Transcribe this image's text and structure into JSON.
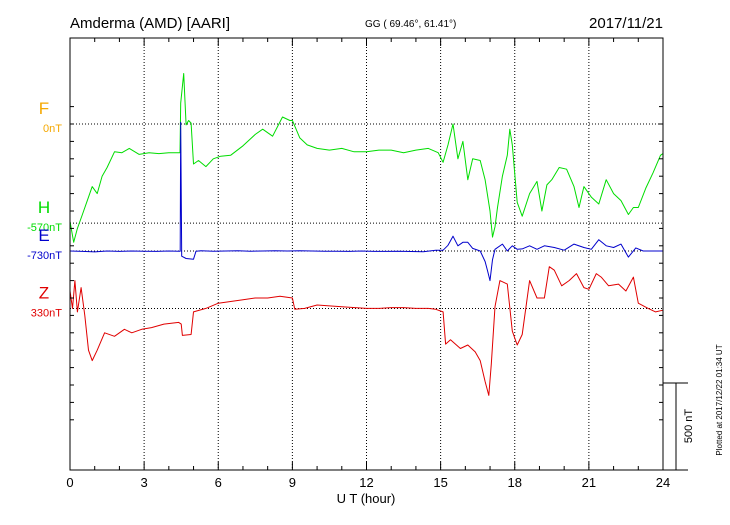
{
  "header": {
    "station": "Amderma (AMD)  [AARI]",
    "coords": "GG ( 69.46°,  61.41°)",
    "date": "2017/11/21"
  },
  "side_note": "Plotted at 2017/12/22 01:34 UT",
  "colors": {
    "F": "#f5a800",
    "H": "#00dd00",
    "E": "#0000cc",
    "Z": "#e00000",
    "grid": "#000000",
    "frame": "#000000"
  },
  "chart_data": {
    "type": "line",
    "title": "Amderma (AMD)  [AARI]",
    "xlabel": "U T (hour)",
    "xlim": [
      0,
      24
    ],
    "xticks": [
      0,
      3,
      6,
      9,
      12,
      15,
      18,
      21,
      24
    ],
    "scale_bar_label": "500 nT",
    "grid": true,
    "series": [
      {
        "key": "F",
        "name": "F",
        "offset_label": "0nT",
        "baseline_nT": 0,
        "points": []
      },
      {
        "key": "H",
        "name": "H",
        "offset_label": "-570nT",
        "baseline_nT": -570,
        "points": [
          [
            0.0,
            -560
          ],
          [
            0.15,
            -680
          ],
          [
            0.3,
            -600
          ],
          [
            0.5,
            -520
          ],
          [
            0.7,
            -440
          ],
          [
            0.9,
            -360
          ],
          [
            1.1,
            -400
          ],
          [
            1.3,
            -300
          ],
          [
            1.5,
            -250
          ],
          [
            1.8,
            -160
          ],
          [
            2.1,
            -165
          ],
          [
            2.4,
            -140
          ],
          [
            2.8,
            -175
          ],
          [
            3.2,
            -165
          ],
          [
            3.6,
            -170
          ],
          [
            4.0,
            -165
          ],
          [
            4.45,
            -165
          ],
          [
            4.48,
            120
          ],
          [
            4.6,
            290
          ],
          [
            4.7,
            -5
          ],
          [
            4.8,
            20
          ],
          [
            4.9,
            5
          ],
          [
            5.0,
            -230
          ],
          [
            5.2,
            -210
          ],
          [
            5.5,
            -245
          ],
          [
            5.8,
            -200
          ],
          [
            6.1,
            -185
          ],
          [
            6.5,
            -180
          ],
          [
            7.0,
            -125
          ],
          [
            7.5,
            -60
          ],
          [
            7.8,
            -30
          ],
          [
            8.2,
            -70
          ],
          [
            8.6,
            40
          ],
          [
            8.9,
            20
          ],
          [
            9.0,
            20
          ],
          [
            9.3,
            -80
          ],
          [
            9.6,
            -120
          ],
          [
            10.0,
            -140
          ],
          [
            10.5,
            -150
          ],
          [
            11.0,
            -140
          ],
          [
            11.5,
            -160
          ],
          [
            12.0,
            -160
          ],
          [
            12.5,
            -150
          ],
          [
            13.0,
            -150
          ],
          [
            13.5,
            -165
          ],
          [
            14.0,
            -150
          ],
          [
            14.5,
            -140
          ],
          [
            14.9,
            -165
          ],
          [
            15.1,
            -220
          ],
          [
            15.3,
            -120
          ],
          [
            15.5,
            0
          ],
          [
            15.7,
            -200
          ],
          [
            15.9,
            -100
          ],
          [
            16.1,
            -320
          ],
          [
            16.3,
            -200
          ],
          [
            16.6,
            -210
          ],
          [
            16.8,
            -320
          ],
          [
            17.0,
            -500
          ],
          [
            17.1,
            -650
          ],
          [
            17.2,
            -590
          ],
          [
            17.3,
            -480
          ],
          [
            17.5,
            -300
          ],
          [
            17.7,
            -180
          ],
          [
            17.8,
            -30
          ],
          [
            17.9,
            -120
          ],
          [
            18.1,
            -450
          ],
          [
            18.3,
            -530
          ],
          [
            18.6,
            -400
          ],
          [
            18.9,
            -330
          ],
          [
            19.1,
            -500
          ],
          [
            19.3,
            -350
          ],
          [
            19.5,
            -320
          ],
          [
            19.8,
            -250
          ],
          [
            20.1,
            -260
          ],
          [
            20.4,
            -360
          ],
          [
            20.6,
            -480
          ],
          [
            20.8,
            -360
          ],
          [
            21.1,
            -420
          ],
          [
            21.4,
            -460
          ],
          [
            21.7,
            -320
          ],
          [
            22.0,
            -400
          ],
          [
            22.3,
            -440
          ],
          [
            22.6,
            -520
          ],
          [
            22.8,
            -480
          ],
          [
            23.0,
            -480
          ],
          [
            23.3,
            -370
          ],
          [
            23.6,
            -280
          ],
          [
            23.9,
            -180
          ],
          [
            24.0,
            -170
          ]
        ]
      },
      {
        "key": "E",
        "name": "E",
        "offset_label": "-730nT",
        "baseline_nT": -730,
        "points": [
          [
            0.0,
            -730
          ],
          [
            0.5,
            -732
          ],
          [
            1.0,
            -735
          ],
          [
            1.5,
            -730
          ],
          [
            2.0,
            -732
          ],
          [
            2.5,
            -730
          ],
          [
            3.0,
            -731
          ],
          [
            3.5,
            -732
          ],
          [
            4.0,
            -730
          ],
          [
            4.4,
            -731
          ],
          [
            4.46,
            -731
          ],
          [
            4.48,
            10
          ],
          [
            4.52,
            -760
          ],
          [
            4.7,
            -773
          ],
          [
            5.0,
            -777
          ],
          [
            5.1,
            -731
          ],
          [
            5.3,
            -729
          ],
          [
            5.8,
            -731
          ],
          [
            6.3,
            -730
          ],
          [
            6.8,
            -728
          ],
          [
            7.3,
            -731
          ],
          [
            7.8,
            -730
          ],
          [
            8.3,
            -729
          ],
          [
            8.8,
            -730
          ],
          [
            9.3,
            -729
          ],
          [
            9.8,
            -730
          ],
          [
            10.3,
            -731
          ],
          [
            10.8,
            -731
          ],
          [
            11.3,
            -732
          ],
          [
            11.8,
            -730
          ],
          [
            12.3,
            -732
          ],
          [
            12.8,
            -732
          ],
          [
            13.3,
            -731
          ],
          [
            13.8,
            -733
          ],
          [
            14.3,
            -734
          ],
          [
            14.8,
            -726
          ],
          [
            15.1,
            -725
          ],
          [
            15.3,
            -697
          ],
          [
            15.5,
            -645
          ],
          [
            15.7,
            -700
          ],
          [
            15.9,
            -680
          ],
          [
            16.1,
            -680
          ],
          [
            16.3,
            -715
          ],
          [
            16.6,
            -730
          ],
          [
            16.8,
            -790
          ],
          [
            16.9,
            -845
          ],
          [
            17.0,
            -900
          ],
          [
            17.1,
            -780
          ],
          [
            17.2,
            -720
          ],
          [
            17.5,
            -690
          ],
          [
            17.7,
            -730
          ],
          [
            17.9,
            -700
          ],
          [
            18.1,
            -720
          ],
          [
            18.3,
            -718
          ],
          [
            18.6,
            -700
          ],
          [
            18.9,
            -720
          ],
          [
            19.2,
            -700
          ],
          [
            19.6,
            -710
          ],
          [
            20.0,
            -725
          ],
          [
            20.4,
            -690
          ],
          [
            20.8,
            -710
          ],
          [
            21.1,
            -720
          ],
          [
            21.4,
            -665
          ],
          [
            21.7,
            -700
          ],
          [
            22.0,
            -710
          ],
          [
            22.3,
            -690
          ],
          [
            22.6,
            -765
          ],
          [
            22.9,
            -712
          ],
          [
            23.2,
            -730
          ],
          [
            23.6,
            -730
          ],
          [
            24.0,
            -730
          ]
        ]
      },
      {
        "key": "Z",
        "name": "Z",
        "offset_label": "330nT",
        "baseline_nT": -1060,
        "points": [
          [
            0.0,
            -960
          ],
          [
            0.1,
            -1060
          ],
          [
            0.2,
            -900
          ],
          [
            0.3,
            -1080
          ],
          [
            0.45,
            -940
          ],
          [
            0.6,
            -1100
          ],
          [
            0.75,
            -1300
          ],
          [
            0.9,
            -1360
          ],
          [
            1.1,
            -1300
          ],
          [
            1.4,
            -1200
          ],
          [
            1.8,
            -1220
          ],
          [
            2.2,
            -1180
          ],
          [
            2.5,
            -1200
          ],
          [
            2.9,
            -1180
          ],
          [
            3.3,
            -1170
          ],
          [
            3.8,
            -1150
          ],
          [
            4.4,
            -1140
          ],
          [
            4.5,
            -1150
          ],
          [
            4.55,
            -1215
          ],
          [
            4.9,
            -1210
          ],
          [
            5.0,
            -1080
          ],
          [
            5.5,
            -1060
          ],
          [
            6.0,
            -1030
          ],
          [
            6.5,
            -1020
          ],
          [
            7.0,
            -1010
          ],
          [
            7.5,
            -1000
          ],
          [
            8.0,
            -1000
          ],
          [
            8.5,
            -990
          ],
          [
            9.0,
            -1000
          ],
          [
            9.1,
            -1065
          ],
          [
            9.5,
            -1060
          ],
          [
            10.0,
            -1040
          ],
          [
            11.0,
            -1050
          ],
          [
            12.0,
            -1060
          ],
          [
            12.5,
            -1060
          ],
          [
            13.0,
            -1055
          ],
          [
            13.5,
            -1055
          ],
          [
            14.0,
            -1060
          ],
          [
            14.5,
            -1060
          ],
          [
            14.8,
            -1065
          ],
          [
            15.1,
            -1080
          ],
          [
            15.2,
            -1265
          ],
          [
            15.4,
            -1240
          ],
          [
            15.8,
            -1290
          ],
          [
            16.1,
            -1270
          ],
          [
            16.4,
            -1310
          ],
          [
            16.6,
            -1360
          ],
          [
            16.8,
            -1480
          ],
          [
            16.95,
            -1560
          ],
          [
            17.05,
            -1380
          ],
          [
            17.2,
            -1050
          ],
          [
            17.4,
            -900
          ],
          [
            17.7,
            -920
          ],
          [
            17.9,
            -1190
          ],
          [
            18.1,
            -1270
          ],
          [
            18.3,
            -1210
          ],
          [
            18.6,
            -900
          ],
          [
            18.9,
            -1000
          ],
          [
            19.2,
            -1000
          ],
          [
            19.4,
            -820
          ],
          [
            19.6,
            -840
          ],
          [
            19.9,
            -930
          ],
          [
            20.2,
            -900
          ],
          [
            20.5,
            -860
          ],
          [
            20.8,
            -940
          ],
          [
            21.0,
            -950
          ],
          [
            21.3,
            -860
          ],
          [
            21.5,
            -880
          ],
          [
            21.8,
            -930
          ],
          [
            22.2,
            -920
          ],
          [
            22.5,
            -960
          ],
          [
            22.8,
            -880
          ],
          [
            23.0,
            -1030
          ],
          [
            23.4,
            -1060
          ],
          [
            23.7,
            -1080
          ],
          [
            24.0,
            -1070
          ]
        ]
      }
    ]
  }
}
